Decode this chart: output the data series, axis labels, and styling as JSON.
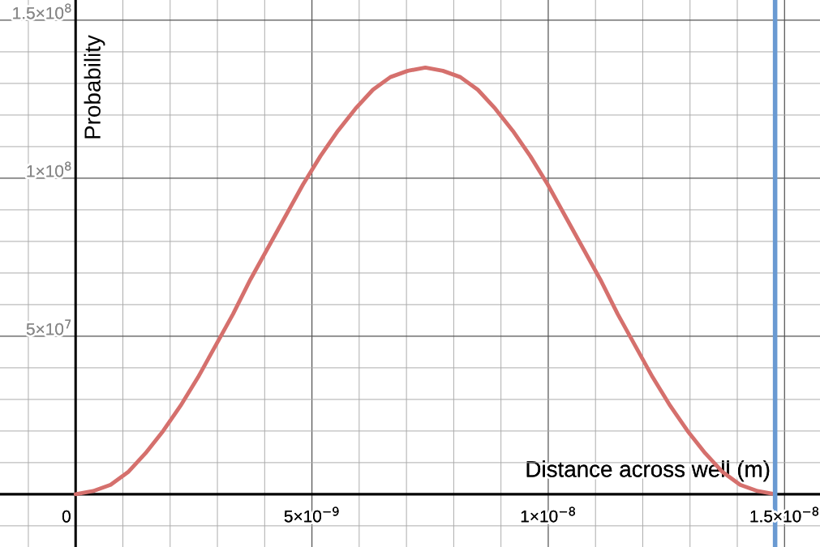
{
  "chart_data": {
    "type": "line",
    "xlabel": "Distance across well (m)",
    "ylabel": "Probability",
    "x": [
      0,
      3.7e-10,
      7.4e-10,
      1.11e-09,
      1.48e-09,
      1.85e-09,
      2.22e-09,
      2.59e-09,
      2.96e-09,
      3.33e-09,
      3.7e-09,
      4.07e-09,
      4.44e-09,
      4.81e-09,
      5.18e-09,
      5.55e-09,
      5.92e-09,
      6.29e-09,
      6.66e-09,
      7.03e-09,
      7.4e-09,
      7.77e-09,
      8.14e-09,
      8.51e-09,
      8.88e-09,
      9.25e-09,
      9.62e-09,
      9.99e-09,
      1.036e-08,
      1.073e-08,
      1.11e-08,
      1.147e-08,
      1.184e-08,
      1.221e-08,
      1.258e-08,
      1.295e-08,
      1.332e-08,
      1.369e-08,
      1.406e-08,
      1.443e-08,
      1.48e-08
    ],
    "series": [
      {
        "color": "#d5706d",
        "values": [
          0,
          1000000,
          3000000,
          7000000,
          13000000,
          20000000,
          28000000,
          37000000,
          47000000,
          57000000,
          68000000,
          78000000,
          88000000,
          98000000,
          107000000,
          115000000,
          122000000,
          128000000,
          132000000,
          134000000,
          135000000,
          134000000,
          132000000,
          128000000,
          122000000,
          115000000,
          107000000,
          98000000,
          88000000,
          78000000,
          68000000,
          57000000,
          47000000,
          37000000,
          28000000,
          20000000,
          13000000,
          7000000,
          3000000,
          1000000,
          0
        ]
      }
    ],
    "xlim": [
      -1.6e-09,
      1.575e-08
    ],
    "ylim": [
      -16700000,
      156400000
    ],
    "xticks": [
      {
        "value": 0,
        "label": "0"
      },
      {
        "value": 5e-09,
        "label": "5×10$^{−9}$"
      },
      {
        "value": 1e-08,
        "label": "1×10$^{−8}$"
      },
      {
        "value": 1.5e-08,
        "label": "1.5×10$^{−8}$"
      }
    ],
    "yticks": [
      {
        "value": 50000000,
        "label": "5×10$^{7}$"
      },
      {
        "value": 100000000,
        "label": "1×10$^{8}$"
      },
      {
        "value": 150000000,
        "label": "1.5×10$^{8}$"
      }
    ],
    "ref_lines": [
      {
        "axis": "x",
        "value": 1.48e-08,
        "color": "#6a9ad2"
      }
    ],
    "grid": true,
    "marker": "none",
    "line_style": "solid"
  }
}
